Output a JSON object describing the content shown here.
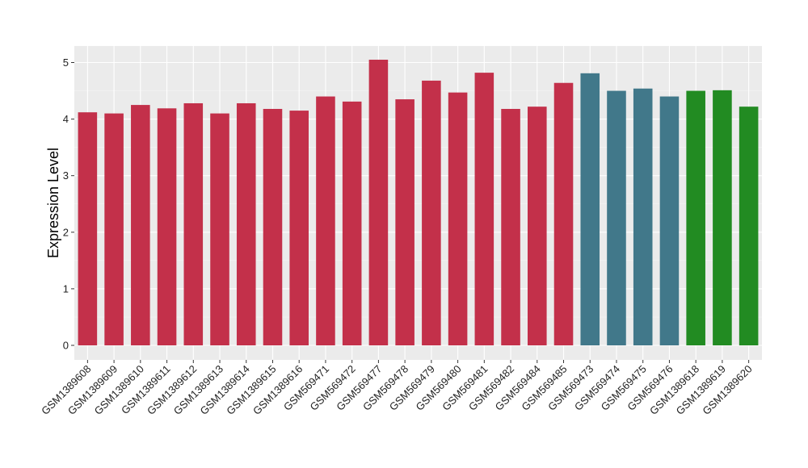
{
  "chart_data": {
    "type": "bar",
    "title": "",
    "xlabel": "",
    "ylabel": "Expression Level",
    "ylim": [
      0,
      5.3
    ],
    "yticks": [
      0,
      1,
      2,
      3,
      4,
      5
    ],
    "grid": true,
    "background": "#EBEBEB",
    "categories": [
      "GSM1389608",
      "GSM1389609",
      "GSM1389610",
      "GSM1389611",
      "GSM1389612",
      "GSM1389613",
      "GSM1389614",
      "GSM1389615",
      "GSM1389616",
      "GSM569471",
      "GSM569472",
      "GSM569477",
      "GSM569478",
      "GSM569479",
      "GSM569480",
      "GSM569481",
      "GSM569482",
      "GSM569484",
      "GSM569485",
      "GSM569473",
      "GSM569474",
      "GSM569475",
      "GSM569476",
      "GSM1389618",
      "GSM1389619",
      "GSM1389620"
    ],
    "values": [
      4.12,
      4.1,
      4.25,
      4.19,
      4.28,
      4.1,
      4.28,
      4.18,
      4.15,
      4.4,
      4.31,
      5.05,
      4.35,
      4.68,
      4.47,
      4.82,
      4.18,
      4.22,
      4.64,
      4.81,
      4.5,
      4.54,
      4.4,
      4.5,
      4.51,
      4.22
    ],
    "bar_colors": [
      "#C3304A",
      "#C3304A",
      "#C3304A",
      "#C3304A",
      "#C3304A",
      "#C3304A",
      "#C3304A",
      "#C3304A",
      "#C3304A",
      "#C3304A",
      "#C3304A",
      "#C3304A",
      "#C3304A",
      "#C3304A",
      "#C3304A",
      "#C3304A",
      "#C3304A",
      "#C3304A",
      "#C3304A",
      "#41788A",
      "#41788A",
      "#41788A",
      "#41788A",
      "#228B22",
      "#228B22",
      "#228B22"
    ]
  }
}
